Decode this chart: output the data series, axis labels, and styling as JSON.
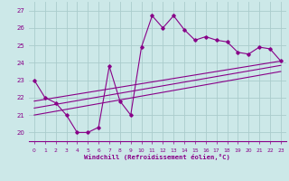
{
  "xlabel": "Windchill (Refroidissement éolien,°C)",
  "bg_color": "#cce8e8",
  "line_color": "#880088",
  "grid_color": "#aacccc",
  "xlim": [
    -0.5,
    23.5
  ],
  "ylim": [
    19.5,
    27.5
  ],
  "yticks": [
    20,
    21,
    22,
    23,
    24,
    25,
    26,
    27
  ],
  "xticks": [
    0,
    1,
    2,
    3,
    4,
    5,
    6,
    7,
    8,
    9,
    10,
    11,
    12,
    13,
    14,
    15,
    16,
    17,
    18,
    19,
    20,
    21,
    22,
    23
  ],
  "series1_x": [
    0,
    1,
    2,
    3,
    4,
    5,
    6,
    7,
    8,
    9,
    10,
    11,
    12,
    13,
    14,
    15,
    16,
    17,
    18,
    19,
    20,
    21,
    22,
    23
  ],
  "series1_y": [
    23.0,
    22.0,
    21.7,
    21.0,
    20.0,
    20.0,
    20.3,
    23.8,
    21.8,
    21.0,
    24.9,
    26.7,
    26.0,
    26.7,
    25.9,
    25.3,
    25.5,
    25.3,
    25.2,
    24.6,
    24.5,
    24.9,
    24.8,
    24.1
  ],
  "series2_x": [
    0,
    23
  ],
  "series2_y": [
    21.8,
    24.1
  ],
  "series3_x": [
    0,
    23
  ],
  "series3_y": [
    21.4,
    23.85
  ],
  "series4_x": [
    0,
    23
  ],
  "series4_y": [
    21.0,
    23.5
  ]
}
